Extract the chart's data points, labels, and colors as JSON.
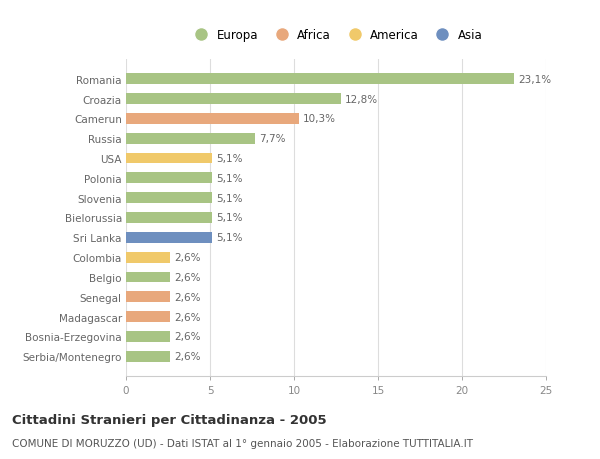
{
  "categories": [
    "Romania",
    "Croazia",
    "Camerun",
    "Russia",
    "USA",
    "Polonia",
    "Slovenia",
    "Bielorussia",
    "Sri Lanka",
    "Colombia",
    "Belgio",
    "Senegal",
    "Madagascar",
    "Bosnia-Erzegovina",
    "Serbia/Montenegro"
  ],
  "values": [
    23.1,
    12.8,
    10.3,
    7.7,
    5.1,
    5.1,
    5.1,
    5.1,
    5.1,
    2.6,
    2.6,
    2.6,
    2.6,
    2.6,
    2.6
  ],
  "labels": [
    "23,1%",
    "12,8%",
    "10,3%",
    "7,7%",
    "5,1%",
    "5,1%",
    "5,1%",
    "5,1%",
    "5,1%",
    "2,6%",
    "2,6%",
    "2,6%",
    "2,6%",
    "2,6%",
    "2,6%"
  ],
  "continent": [
    "Europa",
    "Europa",
    "Africa",
    "Europa",
    "America",
    "Europa",
    "Europa",
    "Europa",
    "Asia",
    "America",
    "Europa",
    "Africa",
    "Africa",
    "Europa",
    "Europa"
  ],
  "colors": {
    "Europa": "#a8c484",
    "Africa": "#e8a87c",
    "America": "#f0c96a",
    "Asia": "#6e8fbf"
  },
  "xlim": [
    0,
    25
  ],
  "xticks": [
    0,
    5,
    10,
    15,
    20,
    25
  ],
  "title": "Cittadini Stranieri per Cittadinanza - 2005",
  "subtitle": "COMUNE DI MORUZZO (UD) - Dati ISTAT al 1° gennaio 2005 - Elaborazione TUTTITALIA.IT",
  "bg_color": "#ffffff",
  "grid_color": "#dddddd",
  "bar_height": 0.55,
  "label_fontsize": 7.5,
  "tick_fontsize": 7.5,
  "title_fontsize": 9.5,
  "subtitle_fontsize": 7.5,
  "legend_order": [
    "Europa",
    "Africa",
    "America",
    "Asia"
  ]
}
